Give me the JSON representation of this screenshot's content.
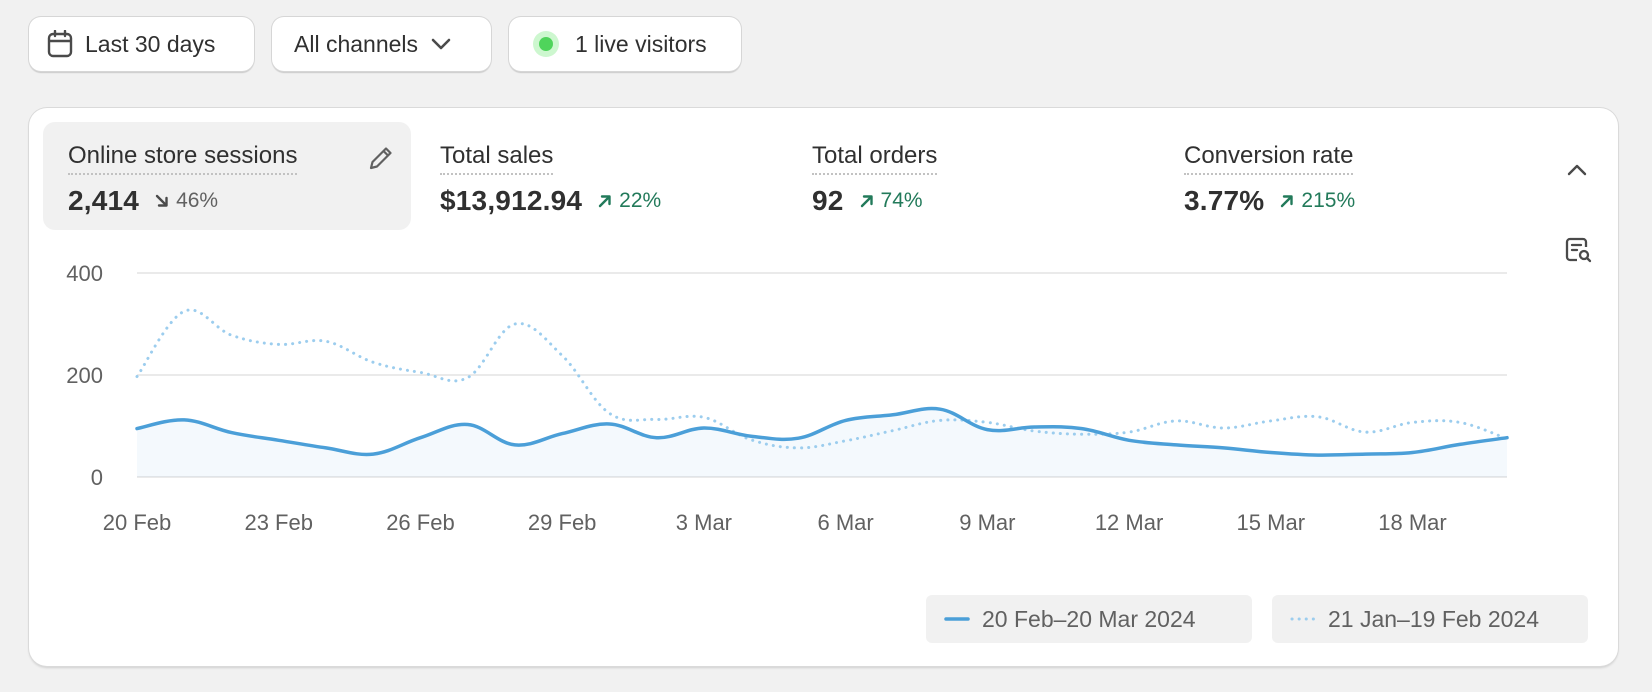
{
  "toolbar": {
    "date_range_label": "Last 30 days",
    "channels_label": "All channels",
    "live_visitors_label": "1 live visitors"
  },
  "metrics": [
    {
      "label": "Online store sessions",
      "value": "2,414",
      "change": "46%",
      "direction": "down",
      "active": true
    },
    {
      "label": "Total sales",
      "value": "$13,912.94",
      "change": "22%",
      "direction": "up"
    },
    {
      "label": "Total orders",
      "value": "92",
      "change": "74%",
      "direction": "up"
    },
    {
      "label": "Conversion rate",
      "value": "3.77%",
      "change": "215%",
      "direction": "up"
    }
  ],
  "colors": {
    "current_series": "#4b9fd8",
    "previous_series": "#9ccdee",
    "trend_up": "#227a5a",
    "trend_down": "#616161",
    "live_dot": "#4fd45b"
  },
  "icons": {
    "date": "calendar-icon",
    "channels": "chevron-down-icon",
    "edit": "pencil-icon",
    "collapse": "chevron-up-icon",
    "report": "report-search-icon"
  },
  "chart_data": {
    "type": "line",
    "ylim": [
      0,
      400
    ],
    "yticks": [
      0,
      200,
      400
    ],
    "xticks": [
      "20 Feb",
      "23 Feb",
      "26 Feb",
      "29 Feb",
      "3 Mar",
      "6 Mar",
      "9 Mar",
      "12 Mar",
      "15 Mar",
      "18 Mar"
    ],
    "grid": true,
    "legend_position": "bottom-right",
    "series": [
      {
        "name": "20 Feb–20 Mar 2024",
        "style": "solid",
        "values": [
          95,
          112,
          87,
          72,
          57,
          45,
          77,
          103,
          63,
          85,
          104,
          77,
          96,
          80,
          76,
          111,
          122,
          133,
          93,
          98,
          95,
          72,
          63,
          57,
          48,
          43,
          45,
          48,
          64,
          77
        ]
      },
      {
        "name": "21 Jan–19 Feb 2024",
        "style": "dotted",
        "values": [
          197,
          325,
          278,
          260,
          266,
          225,
          205,
          195,
          300,
          238,
          125,
          113,
          117,
          73,
          57,
          71,
          91,
          111,
          107,
          90,
          84,
          88,
          110,
          96,
          110,
          118,
          88,
          107,
          107,
          75
        ]
      }
    ]
  }
}
